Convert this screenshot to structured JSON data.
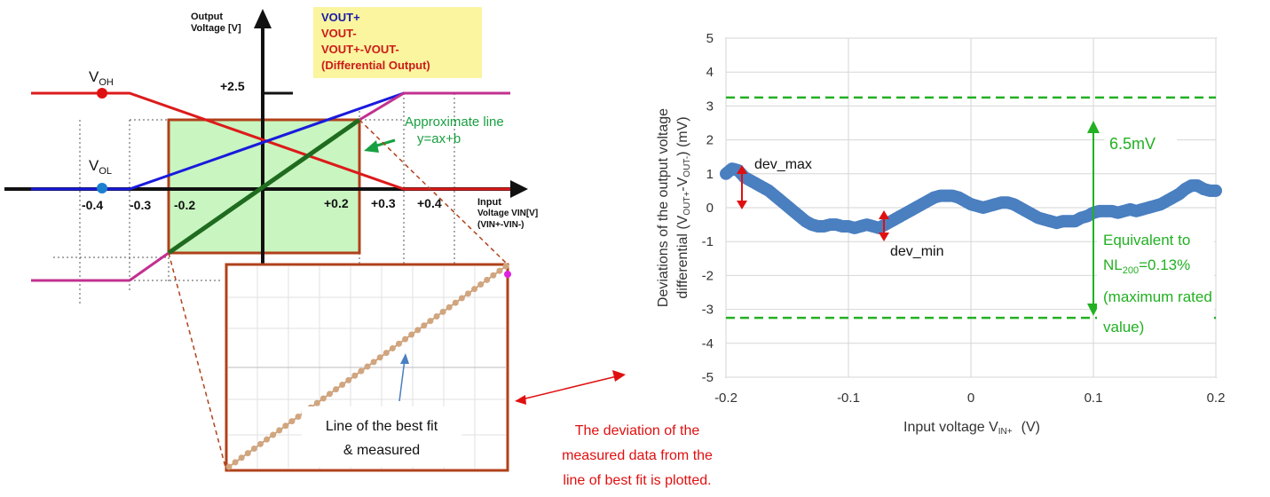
{
  "left_chart": {
    "y_axis_label": [
      "Output",
      "Voltage [V]"
    ],
    "x_axis_label": [
      "Input",
      "Voltage VIN[V]",
      "(VIN+-VIN-)"
    ],
    "legend": [
      {
        "label": "VOUT+",
        "color": "#1a1aa8"
      },
      {
        "label": "VOUT-",
        "color": "#cc1a1a"
      },
      {
        "label": "VOUT+-VOUT-",
        "color": "#cc1a1a"
      },
      {
        "label": "(Differential Output)",
        "color": "#cc1a1a"
      }
    ],
    "voh_label": {
      "main": "V",
      "sub": "OH"
    },
    "vol_label": {
      "main": "V",
      "sub": "OL"
    },
    "y_tick": "+2.5",
    "x_ticks": [
      "-0.4",
      "-0.3",
      "-0.2",
      "+0.2",
      "+0.3",
      "+0.4"
    ],
    "approx_line_label": [
      "Approximate line",
      "y=ax+b"
    ],
    "inset_caption": [
      "Line of the best fit",
      "& measured"
    ],
    "colors": {
      "vout_plus": "#1a1add",
      "vout_minus": "#dd1a1a",
      "differential": "#1f6b1f",
      "saturated": "#c2308f",
      "box_fill": "#c8f5c0",
      "box_stroke": "#b0411a",
      "annotation_green": "#18a040"
    }
  },
  "bridge_text": [
    "The deviation of the",
    "measured data from the",
    "line of best fit is plotted."
  ],
  "chart_data": {
    "type": "scatter",
    "title": "",
    "xlabel": "Input voltage  V",
    "xlabel_sub": "IN+",
    "xlabel_unit": "(V)",
    "ylabel_line1": "Deviations of the output voltage",
    "ylabel_line2_pre": "differential (V",
    "ylabel_sub1": "OUT+",
    "ylabel_mid": "-V",
    "ylabel_sub2": "OUT-",
    "ylabel_post": ")     (mV)",
    "xlim": [
      -0.2,
      0.2
    ],
    "ylim": [
      -5,
      5
    ],
    "x_ticks": [
      "-0.2",
      "-0.1",
      "0",
      "0.1",
      "0.2"
    ],
    "x_tick_values": [
      -0.2,
      -0.1,
      0,
      0.1,
      0.2
    ],
    "y_ticks": [
      "5",
      "4",
      "3",
      "2",
      "1",
      "0",
      "-1",
      "-2",
      "-3",
      "-4",
      "-5"
    ],
    "y_tick_values": [
      5,
      4,
      3,
      2,
      1,
      0,
      -1,
      -2,
      -3,
      -4,
      -5
    ],
    "grid": true,
    "marker_color": "#4a7fc0",
    "limit_lines": {
      "upper": 3.25,
      "lower": -3.25,
      "color": "#22b022"
    },
    "series": [
      {
        "x": [
          -0.2,
          -0.195,
          -0.19,
          -0.185,
          -0.18,
          -0.175,
          -0.17,
          -0.165,
          -0.16,
          -0.155,
          -0.15,
          -0.145,
          -0.14,
          -0.135,
          -0.13,
          -0.125,
          -0.12,
          -0.115,
          -0.11,
          -0.105,
          -0.1,
          -0.095,
          -0.09,
          -0.085,
          -0.08,
          -0.075,
          -0.07,
          -0.065,
          -0.06,
          -0.055,
          -0.05,
          -0.045,
          -0.04,
          -0.035,
          -0.03,
          -0.025,
          -0.02,
          -0.015,
          -0.01,
          -0.005,
          0,
          0.005,
          0.01,
          0.015,
          0.02,
          0.025,
          0.03,
          0.035,
          0.04,
          0.045,
          0.05,
          0.055,
          0.06,
          0.065,
          0.07,
          0.075,
          0.08,
          0.085,
          0.09,
          0.095,
          0.1,
          0.105,
          0.11,
          0.115,
          0.12,
          0.125,
          0.13,
          0.135,
          0.14,
          0.145,
          0.15,
          0.155,
          0.16,
          0.165,
          0.17,
          0.175,
          0.18,
          0.185,
          0.19,
          0.195,
          0.2
        ],
        "y": [
          1.0,
          1.15,
          1.1,
          0.9,
          0.8,
          0.7,
          0.6,
          0.5,
          0.35,
          0.2,
          0.05,
          -0.1,
          -0.25,
          -0.4,
          -0.5,
          -0.55,
          -0.55,
          -0.5,
          -0.5,
          -0.55,
          -0.55,
          -0.6,
          -0.55,
          -0.5,
          -0.55,
          -0.6,
          -0.5,
          -0.4,
          -0.3,
          -0.2,
          -0.1,
          0.0,
          0.1,
          0.2,
          0.3,
          0.35,
          0.35,
          0.35,
          0.3,
          0.2,
          0.1,
          0.05,
          0.0,
          0.05,
          0.1,
          0.15,
          0.15,
          0.1,
          0.0,
          -0.1,
          -0.2,
          -0.3,
          -0.35,
          -0.4,
          -0.45,
          -0.4,
          -0.4,
          -0.4,
          -0.3,
          -0.25,
          -0.15,
          -0.1,
          -0.1,
          -0.1,
          -0.15,
          -0.1,
          -0.05,
          -0.1,
          -0.05,
          0.0,
          0.05,
          0.1,
          0.2,
          0.3,
          0.4,
          0.55,
          0.65,
          0.65,
          0.55,
          0.5,
          0.5
        ]
      }
    ],
    "annotations": {
      "dev_max": "dev_max",
      "dev_min": "dev_min",
      "span_label": "6.5mV",
      "equivalent_lines": [
        "Equivalent to",
        "=0.13%",
        "(maximum rated",
        "value)"
      ],
      "nl_main": "NL",
      "nl_sub": "200"
    }
  }
}
